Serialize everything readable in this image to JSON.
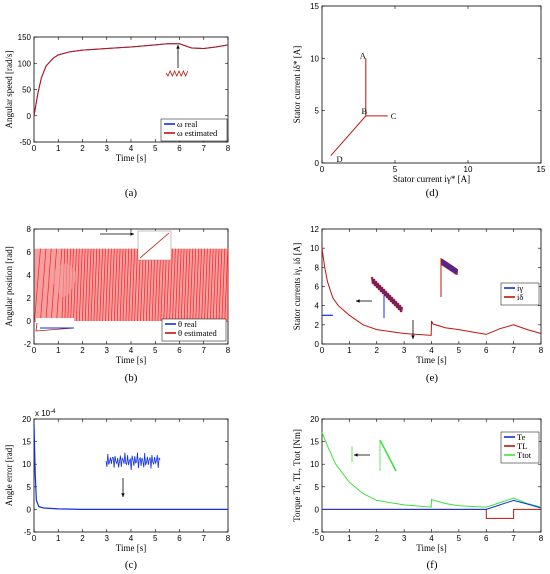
{
  "colors": {
    "blue": "#1030e0",
    "red": "#c0140c",
    "green": "#3ee23e",
    "pink": "#f4a0a0",
    "brightred": "#ff1e1e"
  },
  "chart_data": [
    {
      "id": "a",
      "type": "line",
      "caption": "(a)",
      "xlabel": "Time [s]",
      "ylabel": "Angular speed [rad/s]",
      "xlim": [
        0,
        8
      ],
      "ylim": [
        -50,
        150
      ],
      "xticks": [
        0,
        1,
        2,
        3,
        4,
        5,
        6,
        7,
        8
      ],
      "yticks": [
        -50,
        0,
        50,
        100,
        150
      ],
      "legend": [
        "ω real",
        "ω estimated"
      ],
      "series": [
        {
          "name": "ω real",
          "x": [
            0,
            0.15,
            0.3,
            0.5,
            0.8,
            1,
            1.5,
            2,
            3,
            4,
            5,
            5.5,
            6,
            6.5,
            7,
            7.5,
            8
          ],
          "y": [
            0,
            40,
            72,
            95,
            110,
            116,
            122,
            125,
            128,
            131,
            135,
            137,
            137,
            129,
            128,
            131,
            135
          ]
        },
        {
          "name": "ω estimated",
          "x": [
            0,
            0.15,
            0.3,
            0.5,
            0.8,
            1,
            1.5,
            2,
            3,
            4,
            5,
            5.5,
            6,
            6.5,
            7,
            7.5,
            8
          ],
          "y": [
            0,
            40,
            72,
            95,
            110,
            116,
            122,
            125,
            128,
            131,
            135,
            137,
            137,
            129,
            128,
            131,
            135
          ]
        }
      ]
    },
    {
      "id": "b",
      "type": "line",
      "caption": "(b)",
      "xlabel": "Time [s]",
      "ylabel": "Angular position [rad]",
      "xlim": [
        0,
        8
      ],
      "ylim": [
        -2,
        8
      ],
      "xticks": [
        0,
        1,
        2,
        3,
        4,
        5,
        6,
        7,
        8
      ],
      "yticks": [
        -2,
        0,
        2,
        4,
        6,
        8
      ],
      "legend": [
        "θ real",
        "θ estimated"
      ],
      "series": [
        {
          "name": "θ real",
          "note": "sawtooth wrapping 0 to 2π"
        },
        {
          "name": "θ estimated",
          "note": "sawtooth wrapping 0 to 2π"
        }
      ]
    },
    {
      "id": "c",
      "type": "line",
      "caption": "(c)",
      "xlabel": "Time [s]",
      "ylabel": "Angle error [rad]",
      "exponent": "x 10",
      "exponent_power": "-4",
      "xlim": [
        0,
        8
      ],
      "ylim": [
        -5,
        20
      ],
      "xticks": [
        0,
        1,
        2,
        3,
        4,
        5,
        6,
        7,
        8
      ],
      "yticks": [
        -5,
        0,
        5,
        10,
        15,
        20
      ],
      "series": [
        {
          "name": "error",
          "x": [
            0,
            0.05,
            0.1,
            0.2,
            0.4,
            1,
            2,
            3,
            4,
            5,
            6,
            7,
            8
          ],
          "y": [
            19,
            8,
            2,
            0.6,
            0.3,
            0.1,
            0,
            0,
            0,
            0,
            0,
            0,
            0
          ]
        }
      ]
    },
    {
      "id": "d",
      "type": "line",
      "caption": "(d)",
      "xlabel": "Stator current iγ* [A]",
      "ylabel": "Stator current iδ* [A]",
      "xlim": [
        0,
        15
      ],
      "ylim": [
        0,
        15
      ],
      "xticks": [
        0,
        5,
        10,
        15
      ],
      "yticks": [
        0,
        5,
        10,
        15
      ],
      "annotations": [
        {
          "text": "A",
          "x": 2.8,
          "y": 10
        },
        {
          "text": "B",
          "x": 2.9,
          "y": 4.7
        },
        {
          "text": "C",
          "x": 4.9,
          "y": 4.2
        },
        {
          "text": "D",
          "x": 1.2,
          "y": 0.1
        }
      ],
      "series": [
        {
          "name": "trajectory",
          "x": [
            0.6,
            3.0,
            4.5,
            3.0,
            3.0
          ],
          "y": [
            0.7,
            4.5,
            4.5,
            4.5,
            10.0
          ]
        }
      ]
    },
    {
      "id": "e",
      "type": "line",
      "caption": "(e)",
      "xlabel": "Time [s]",
      "ylabel": "Stator currents iγ, iδ [A]",
      "xlim": [
        0,
        8
      ],
      "ylim": [
        0,
        12
      ],
      "xticks": [
        0,
        1,
        2,
        3,
        4,
        5,
        6,
        7,
        8
      ],
      "yticks": [
        0,
        2,
        4,
        6,
        8,
        10,
        12
      ],
      "legend": [
        "iγ",
        "iδ"
      ],
      "series": [
        {
          "name": "iγ",
          "x": [
            0,
            0.02,
            0.4,
            0.4
          ],
          "y": [
            3,
            3,
            3,
            3
          ]
        },
        {
          "name": "iδ",
          "x": [
            0,
            0.1,
            0.2,
            0.4,
            0.6,
            1,
            1.5,
            2,
            3,
            3.99,
            4,
            4.05,
            4.5,
            5,
            6,
            6.5,
            7,
            7.5,
            8
          ],
          "y": [
            10,
            8,
            6.5,
            4.8,
            4,
            3,
            2,
            1.5,
            1.1,
            0.9,
            2.4,
            2.1,
            1.7,
            1.5,
            1,
            1.6,
            2,
            1.5,
            1.1
          ]
        }
      ]
    },
    {
      "id": "f",
      "type": "line",
      "caption": "(f)",
      "xlabel": "Time [s]",
      "ylabel": "Torque Te, TL, Ttot [Nm]",
      "xlim": [
        0,
        8
      ],
      "ylim": [
        -5,
        20
      ],
      "xticks": [
        0,
        1,
        2,
        3,
        4,
        5,
        6,
        7,
        8
      ],
      "yticks": [
        -5,
        0,
        5,
        10,
        15,
        20
      ],
      "legend": [
        "Te",
        "TL",
        "Ttot"
      ],
      "series": [
        {
          "name": "Te",
          "x": [
            0,
            6,
            6.5,
            7,
            7.5,
            8
          ],
          "y": [
            0,
            0,
            1,
            2,
            1.2,
            0.3
          ]
        },
        {
          "name": "TL",
          "x": [
            0,
            6,
            6,
            7,
            7,
            8
          ],
          "y": [
            0,
            0,
            -2,
            -2,
            0,
            0
          ]
        },
        {
          "name": "Ttot",
          "x": [
            0,
            0.2,
            0.5,
            1,
            1.5,
            2,
            3,
            3.99,
            4,
            4.5,
            5,
            6,
            6.5,
            7,
            7.5,
            8
          ],
          "y": [
            17,
            14,
            10,
            6,
            3.5,
            2,
            1,
            0.5,
            2.2,
            1.3,
            0.8,
            0.5,
            1.5,
            2.5,
            1.3,
            0.5
          ]
        }
      ]
    }
  ]
}
